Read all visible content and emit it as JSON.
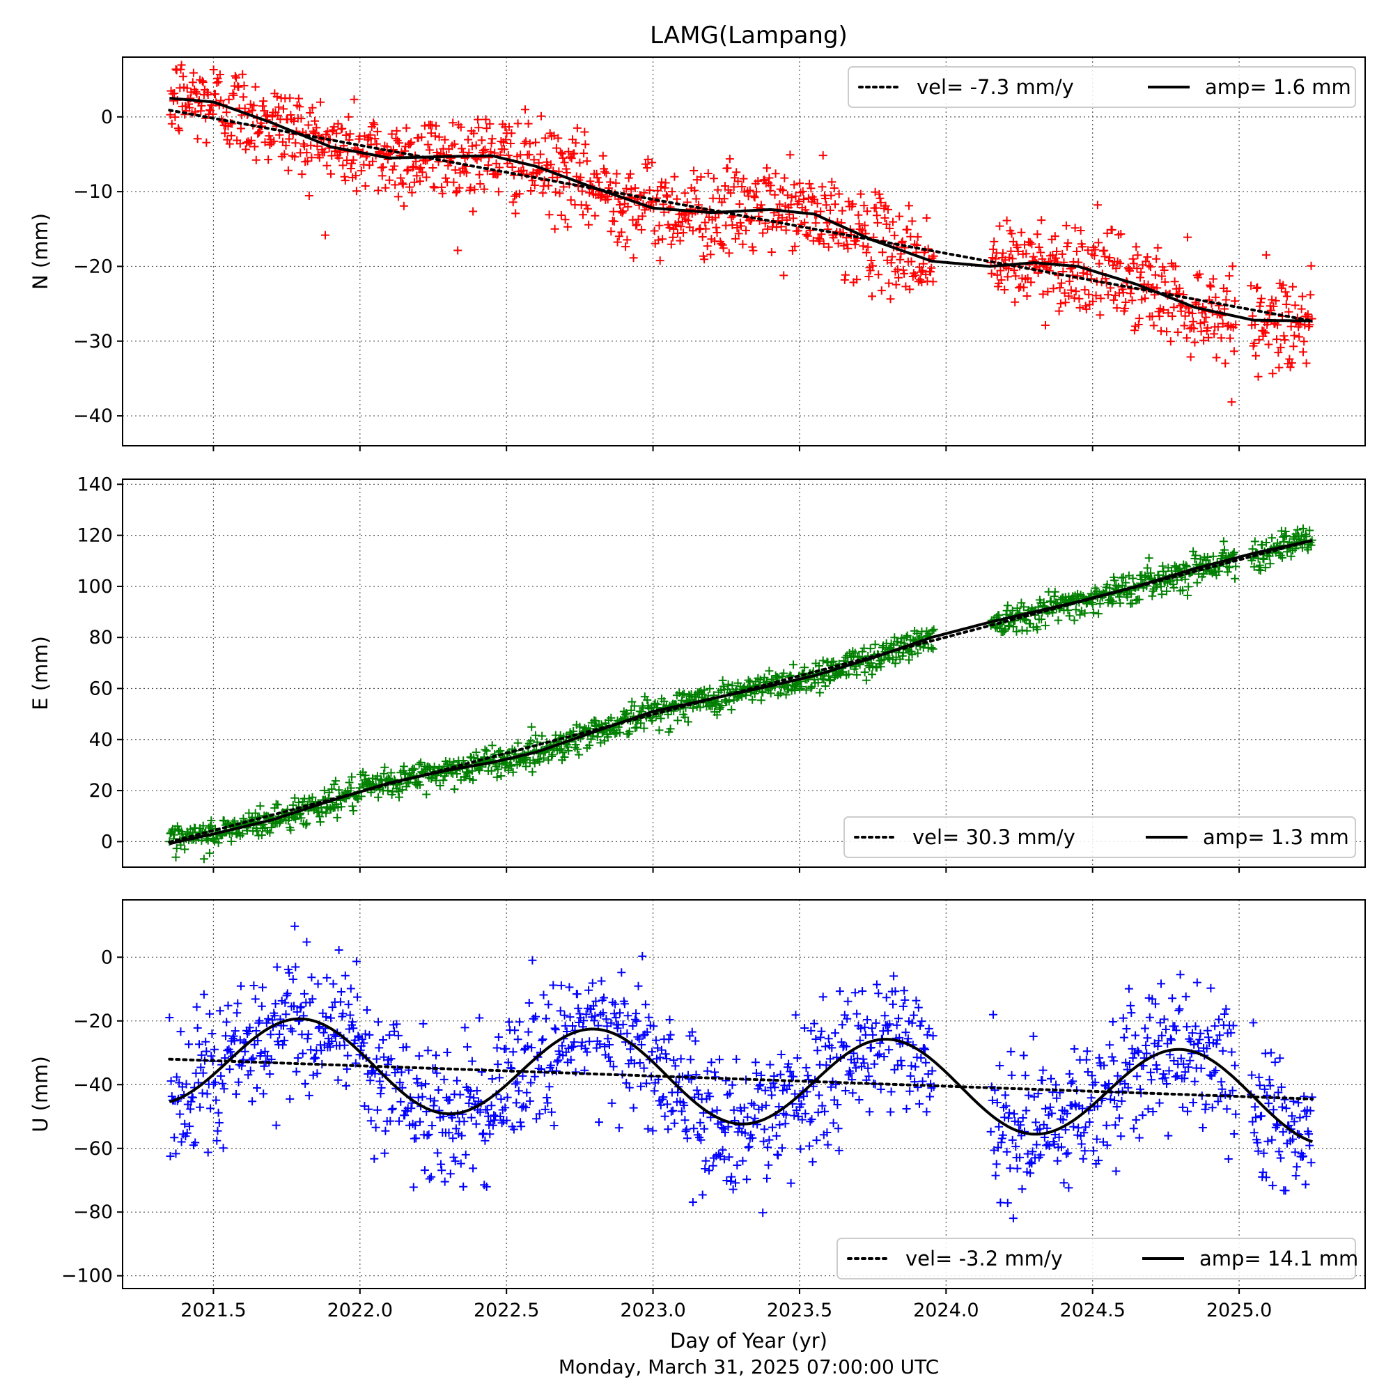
{
  "chart_data": {
    "type": "scatter",
    "title": "LAMG(Lampang)",
    "xlabel": "Day of Year (yr)",
    "footer": "Monday, March 31, 2025 07:00:00 UTC",
    "xlim": [
      2021.19,
      2025.43
    ],
    "xticks": [
      2021.5,
      2022.0,
      2022.5,
      2023.0,
      2023.5,
      2024.0,
      2024.5,
      2025.0
    ],
    "xtick_labels": [
      "2021.5",
      "2022.0",
      "2022.5",
      "2023.0",
      "2023.5",
      "2024.0",
      "2024.5",
      "2025.0"
    ],
    "data_start": 2021.35,
    "data_end": 2025.25,
    "gaps": [
      [
        2023.96,
        2024.15
      ],
      [
        2024.99,
        2025.04
      ]
    ],
    "grid": true,
    "panels": [
      {
        "name": "north",
        "ylabel": "N (mm)",
        "ylim": [
          -44,
          8
        ],
        "yticks": [
          0,
          -10,
          -20,
          -30,
          -40
        ],
        "ytick_labels": [
          "0",
          "−10",
          "−20",
          "−30",
          "−40"
        ],
        "marker_color": "#ff0000",
        "legend_position": "top-right",
        "legend": [
          "vel= -7.3 mm/y",
          "amp= 1.6 mm"
        ],
        "velocity": -7.3,
        "amplitude": 1.6,
        "fit_points": [
          [
            2021.35,
            2.5
          ],
          [
            2021.5,
            2.0
          ],
          [
            2021.7,
            -0.8
          ],
          [
            2021.9,
            -4.0
          ],
          [
            2022.1,
            -5.5
          ],
          [
            2022.3,
            -5.3
          ],
          [
            2022.45,
            -5.2
          ],
          [
            2022.6,
            -6.6
          ],
          [
            2022.8,
            -9.5
          ],
          [
            2023.0,
            -12.2
          ],
          [
            2023.2,
            -12.8
          ],
          [
            2023.4,
            -12.4
          ],
          [
            2023.55,
            -13.0
          ],
          [
            2023.75,
            -16.5
          ],
          [
            2023.95,
            -19.3
          ],
          [
            2024.15,
            -20.0
          ],
          [
            2024.3,
            -19.5
          ],
          [
            2024.45,
            -20.0
          ],
          [
            2024.65,
            -22.4
          ],
          [
            2024.85,
            -25.5
          ],
          [
            2025.05,
            -27.2
          ],
          [
            2025.25,
            -27.3
          ]
        ],
        "trend_line": [
          [
            2021.35,
            0.9
          ],
          [
            2025.25,
            -27.3
          ]
        ]
      },
      {
        "name": "east",
        "ylabel": "E (mm)",
        "ylim": [
          -10,
          142
        ],
        "yticks": [
          0,
          20,
          40,
          60,
          80,
          100,
          120,
          140
        ],
        "ytick_labels": [
          "0",
          "20",
          "40",
          "60",
          "80",
          "100",
          "120",
          "140"
        ],
        "marker_color": "#008000",
        "legend_position": "bottom-right",
        "legend": [
          "vel= 30.3 mm/y",
          "amp= 1.3 mm"
        ],
        "velocity": 30.3,
        "amplitude": 1.3,
        "fit_points": [
          [
            2021.35,
            -0.8
          ],
          [
            2021.5,
            3.0
          ],
          [
            2021.7,
            8.5
          ],
          [
            2021.9,
            16.0
          ],
          [
            2022.1,
            23.0
          ],
          [
            2022.3,
            28.0
          ],
          [
            2022.45,
            31.0
          ],
          [
            2022.6,
            35.0
          ],
          [
            2022.8,
            43.0
          ],
          [
            2023.0,
            51.0
          ],
          [
            2023.2,
            56.0
          ],
          [
            2023.4,
            61.0
          ],
          [
            2023.55,
            65.0
          ],
          [
            2023.75,
            72.0
          ],
          [
            2023.95,
            80.0
          ],
          [
            2024.15,
            86.0
          ],
          [
            2024.3,
            90.0
          ],
          [
            2024.45,
            94.0
          ],
          [
            2024.65,
            100.0
          ],
          [
            2024.85,
            107.0
          ],
          [
            2025.05,
            113.0
          ],
          [
            2025.25,
            118.0
          ]
        ],
        "trend_line": [
          [
            2021.35,
            -0.2
          ],
          [
            2025.25,
            118.0
          ]
        ]
      },
      {
        "name": "up",
        "ylabel": "U (mm)",
        "ylim": [
          -104,
          18
        ],
        "yticks": [
          0,
          -20,
          -40,
          -60,
          -80,
          -100
        ],
        "ytick_labels": [
          "0",
          "−20",
          "−40",
          "−60",
          "−80",
          "−100"
        ],
        "marker_color": "#0000ff",
        "legend_position": "bottom-right",
        "legend": [
          "vel= -3.2 mm/y",
          "amp= 14.1 mm"
        ],
        "velocity": -3.2,
        "amplitude": 14.1,
        "fit_phase_yr": 2021.55,
        "trend_line": [
          [
            2021.35,
            -32.0
          ],
          [
            2025.25,
            -44.5
          ]
        ]
      }
    ]
  }
}
